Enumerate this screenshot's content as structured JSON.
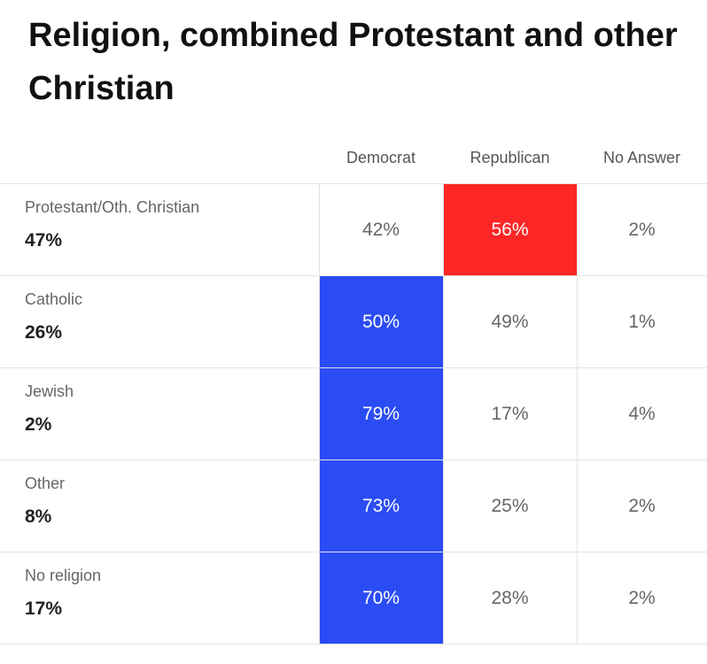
{
  "header": {
    "title": "Religion, combined Protestant and other Christian"
  },
  "table": {
    "columns": [
      {
        "label": "Democrat",
        "color": "#2b4cf5"
      },
      {
        "label": "Republican",
        "color": "#fc2626"
      },
      {
        "label": "No Answer",
        "color": "#9e9e9e"
      }
    ],
    "rows": [
      {
        "label": "Protestant/Oth. Christian",
        "share": "47%",
        "values": [
          "42%",
          "56%",
          "2%"
        ],
        "highlight": 1
      },
      {
        "label": "Catholic",
        "share": "26%",
        "values": [
          "50%",
          "49%",
          "1%"
        ],
        "highlight": 0
      },
      {
        "label": "Jewish",
        "share": "2%",
        "values": [
          "79%",
          "17%",
          "4%"
        ],
        "highlight": 0
      },
      {
        "label": "Other",
        "share": "8%",
        "values": [
          "73%",
          "25%",
          "2%"
        ],
        "highlight": 0
      },
      {
        "label": "No religion",
        "share": "17%",
        "values": [
          "70%",
          "28%",
          "2%"
        ],
        "highlight": 0
      }
    ]
  }
}
